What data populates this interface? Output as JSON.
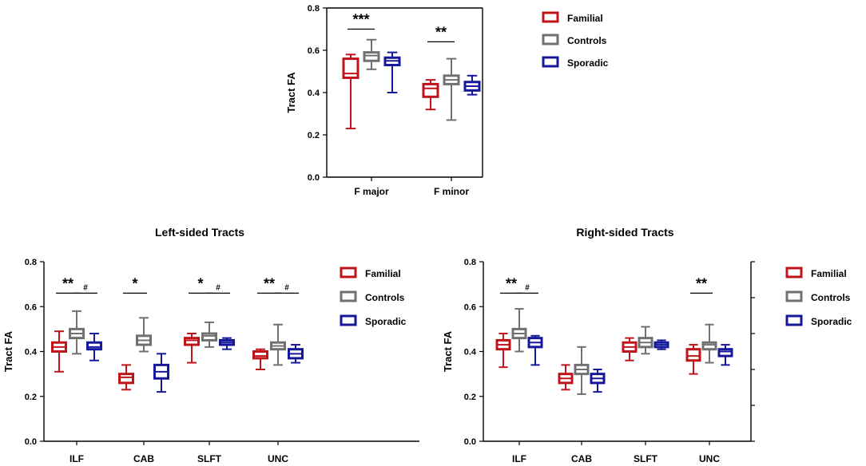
{
  "colors": {
    "familial": "#c0141b",
    "controls": "#707070",
    "sporadic": "#16189a",
    "axis": "#000000"
  },
  "legend": [
    "Familial",
    "Controls",
    "Sporadic"
  ],
  "chart_data": [
    {
      "type": "box",
      "title": "",
      "ylabel": "Tract FA",
      "ylim": [
        0,
        0.8
      ],
      "yticks": [
        "0.0",
        "0.2",
        "0.4",
        "0.6",
        "0.8"
      ],
      "categories": [
        "F major",
        "F minor"
      ],
      "series": [
        {
          "name": "Familial",
          "boxes": [
            {
              "min": 0.23,
              "q1": 0.47,
              "median": 0.49,
              "q3": 0.56,
              "max": 0.58
            },
            {
              "min": 0.32,
              "q1": 0.38,
              "median": 0.42,
              "q3": 0.44,
              "max": 0.46
            }
          ]
        },
        {
          "name": "Controls",
          "boxes": [
            {
              "min": 0.51,
              "q1": 0.55,
              "median": 0.575,
              "q3": 0.59,
              "max": 0.65
            },
            {
              "min": 0.27,
              "q1": 0.44,
              "median": 0.46,
              "q3": 0.48,
              "max": 0.56
            }
          ]
        },
        {
          "name": "Sporadic",
          "boxes": [
            {
              "min": 0.4,
              "q1": 0.53,
              "median": 0.55,
              "q3": 0.565,
              "max": 0.59
            },
            {
              "min": 0.39,
              "q1": 0.41,
              "median": 0.43,
              "q3": 0.45,
              "max": 0.48
            }
          ]
        }
      ],
      "annotations": [
        {
          "category": 0,
          "from": 0,
          "to": 1,
          "label": "***"
        },
        {
          "category": 1,
          "from": 0,
          "to": 1,
          "label": "**"
        }
      ]
    },
    {
      "type": "box",
      "title": "Left-sided Tracts",
      "ylabel": "Tract FA",
      "ylim": [
        0,
        0.8
      ],
      "yticks": [
        "0.0",
        "0.2",
        "0.4",
        "0.6",
        "0.8"
      ],
      "categories": [
        "ILF",
        "CAB",
        "SLFT",
        "UNC"
      ],
      "series": [
        {
          "name": "Familial",
          "boxes": [
            {
              "min": 0.31,
              "q1": 0.4,
              "median": 0.42,
              "q3": 0.44,
              "max": 0.49
            },
            {
              "min": 0.23,
              "q1": 0.26,
              "median": 0.285,
              "q3": 0.3,
              "max": 0.34
            },
            {
              "min": 0.35,
              "q1": 0.43,
              "median": 0.45,
              "q3": 0.46,
              "max": 0.48
            },
            {
              "min": 0.32,
              "q1": 0.37,
              "median": 0.38,
              "q3": 0.4,
              "max": 0.41
            }
          ]
        },
        {
          "name": "Controls",
          "boxes": [
            {
              "min": 0.39,
              "q1": 0.46,
              "median": 0.48,
              "q3": 0.5,
              "max": 0.58
            },
            {
              "min": 0.4,
              "q1": 0.43,
              "median": 0.45,
              "q3": 0.47,
              "max": 0.55
            },
            {
              "min": 0.42,
              "q1": 0.45,
              "median": 0.47,
              "q3": 0.48,
              "max": 0.53
            },
            {
              "min": 0.34,
              "q1": 0.41,
              "median": 0.425,
              "q3": 0.44,
              "max": 0.52
            }
          ]
        },
        {
          "name": "Sporadic",
          "boxes": [
            {
              "min": 0.36,
              "q1": 0.41,
              "median": 0.42,
              "q3": 0.44,
              "max": 0.48
            },
            {
              "min": 0.22,
              "q1": 0.28,
              "median": 0.31,
              "q3": 0.34,
              "max": 0.39
            },
            {
              "min": 0.41,
              "q1": 0.43,
              "median": 0.44,
              "q3": 0.45,
              "max": 0.46
            },
            {
              "min": 0.35,
              "q1": 0.37,
              "median": 0.39,
              "q3": 0.41,
              "max": 0.43
            }
          ]
        }
      ],
      "annotations": [
        {
          "category": 0,
          "from": 0,
          "to": 1,
          "label": "**"
        },
        {
          "category": 0,
          "from": 1,
          "to": 2,
          "label": "#"
        },
        {
          "category": 1,
          "from": 0,
          "to": 1,
          "label": "*"
        },
        {
          "category": 2,
          "from": 0,
          "to": 1,
          "label": "*"
        },
        {
          "category": 2,
          "from": 1,
          "to": 2,
          "label": "#"
        },
        {
          "category": 3,
          "from": 0,
          "to": 1,
          "label": "**"
        },
        {
          "category": 3,
          "from": 1,
          "to": 2,
          "label": "#"
        }
      ]
    },
    {
      "type": "box",
      "title": "Right-sided Tracts",
      "ylabel": "Tract FA",
      "ylim": [
        0,
        0.8
      ],
      "yticks": [
        "0.0",
        "0.2",
        "0.4",
        "0.6",
        "0.8"
      ],
      "categories": [
        "ILF",
        "CAB",
        "SLFT",
        "UNC"
      ],
      "series": [
        {
          "name": "Familial",
          "boxes": [
            {
              "min": 0.33,
              "q1": 0.41,
              "median": 0.43,
              "q3": 0.45,
              "max": 0.48
            },
            {
              "min": 0.23,
              "q1": 0.26,
              "median": 0.28,
              "q3": 0.3,
              "max": 0.34
            },
            {
              "min": 0.36,
              "q1": 0.4,
              "median": 0.42,
              "q3": 0.44,
              "max": 0.46
            },
            {
              "min": 0.3,
              "q1": 0.36,
              "median": 0.38,
              "q3": 0.41,
              "max": 0.43
            }
          ]
        },
        {
          "name": "Controls",
          "boxes": [
            {
              "min": 0.4,
              "q1": 0.46,
              "median": 0.48,
              "q3": 0.5,
              "max": 0.59
            },
            {
              "min": 0.21,
              "q1": 0.3,
              "median": 0.32,
              "q3": 0.34,
              "max": 0.42
            },
            {
              "min": 0.39,
              "q1": 0.42,
              "median": 0.44,
              "q3": 0.46,
              "max": 0.51
            },
            {
              "min": 0.35,
              "q1": 0.41,
              "median": 0.43,
              "q3": 0.44,
              "max": 0.52
            }
          ]
        },
        {
          "name": "Sporadic",
          "boxes": [
            {
              "min": 0.34,
              "q1": 0.42,
              "median": 0.44,
              "q3": 0.46,
              "max": 0.47
            },
            {
              "min": 0.22,
              "q1": 0.26,
              "median": 0.28,
              "q3": 0.3,
              "max": 0.32
            },
            {
              "min": 0.41,
              "q1": 0.42,
              "median": 0.43,
              "q3": 0.44,
              "max": 0.45
            },
            {
              "min": 0.34,
              "q1": 0.38,
              "median": 0.4,
              "q3": 0.41,
              "max": 0.43
            }
          ]
        }
      ],
      "annotations": [
        {
          "category": 0,
          "from": 0,
          "to": 1,
          "label": "**"
        },
        {
          "category": 0,
          "from": 1,
          "to": 2,
          "label": "#"
        },
        {
          "category": 3,
          "from": 0,
          "to": 1,
          "label": "**"
        }
      ]
    }
  ]
}
